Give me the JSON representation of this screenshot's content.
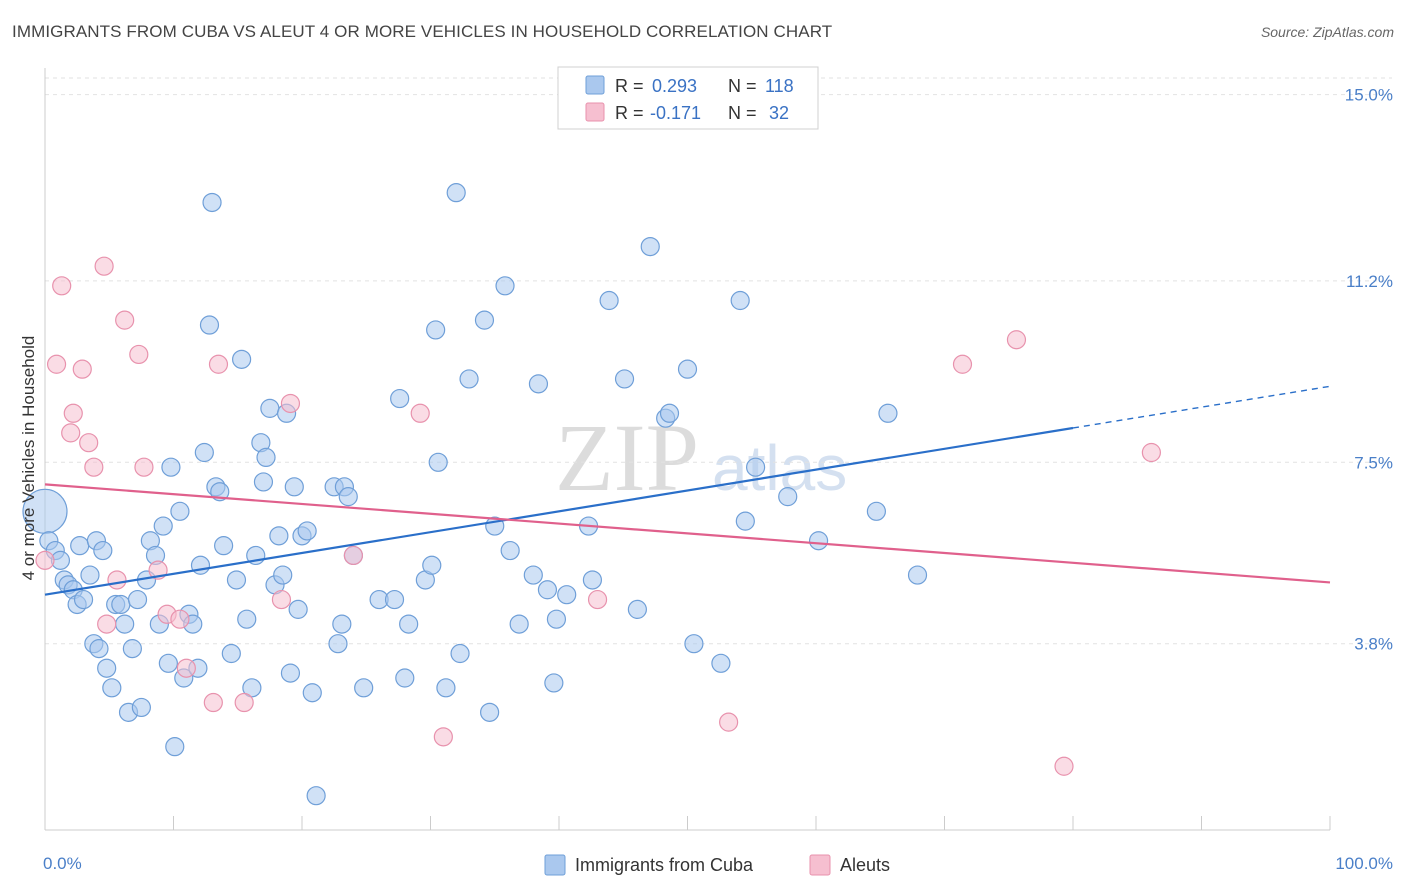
{
  "title": "IMMIGRANTS FROM CUBA VS ALEUT 4 OR MORE VEHICLES IN HOUSEHOLD CORRELATION CHART",
  "source": "Source: ZipAtlas.com",
  "watermark": {
    "zip": "ZIP",
    "atlas": "atlas"
  },
  "legend": {
    "r_label": "R =",
    "n_label": "N =",
    "rows": [
      {
        "r": "0.293",
        "n": "118"
      },
      {
        "r": "-0.171",
        "n": "32"
      }
    ]
  },
  "colors": {
    "blue_fill": "#aac8ee",
    "blue_stroke": "#6f9fd8",
    "blue_line": "#2a6fc9",
    "pink_fill": "#f6bfd0",
    "pink_stroke": "#e892ad",
    "pink_line": "#e0608c"
  },
  "chart_data": {
    "type": "scatter",
    "title": "IMMIGRANTS FROM CUBA VS ALEUT 4 OR MORE VEHICLES IN HOUSEHOLD CORRELATION CHART",
    "xlabel": "",
    "ylabel": "4 or more Vehicles in Household",
    "xlim": [
      0,
      100
    ],
    "ylim": [
      0,
      15.4
    ],
    "x_tick_labels": [
      "0.0%",
      "100.0%"
    ],
    "y_ticks": [
      3.8,
      7.5,
      11.2,
      15.0
    ],
    "y_tick_labels": [
      "3.8%",
      "7.5%",
      "11.2%",
      "15.0%"
    ],
    "grid": true,
    "legend_position": "top-center",
    "series": [
      {
        "name": "Immigrants from Cuba",
        "color": "#aac8ee",
        "trend": {
          "x": [
            0,
            80
          ],
          "y": [
            4.8,
            8.2
          ],
          "dashed_to": [
            100,
            9.05
          ]
        },
        "points": [
          [
            0,
            6.5,
            "big"
          ],
          [
            0.3,
            5.9
          ],
          [
            0.8,
            5.7
          ],
          [
            1.2,
            5.5
          ],
          [
            1.5,
            5.1
          ],
          [
            1.8,
            5.0
          ],
          [
            2.2,
            4.9
          ],
          [
            2.5,
            4.6
          ],
          [
            3.0,
            4.7
          ],
          [
            2.7,
            5.8
          ],
          [
            3.5,
            5.2
          ],
          [
            3.8,
            3.8
          ],
          [
            4.2,
            3.7
          ],
          [
            4.0,
            5.9
          ],
          [
            4.5,
            5.7
          ],
          [
            4.8,
            3.3
          ],
          [
            5.2,
            2.9
          ],
          [
            5.5,
            4.6
          ],
          [
            5.9,
            4.6
          ],
          [
            6.2,
            4.2
          ],
          [
            6.5,
            2.4
          ],
          [
            6.8,
            3.7
          ],
          [
            7.2,
            4.7
          ],
          [
            7.5,
            2.5
          ],
          [
            7.9,
            5.1
          ],
          [
            8.2,
            5.9
          ],
          [
            8.6,
            5.6
          ],
          [
            8.9,
            4.2
          ],
          [
            9.2,
            6.2
          ],
          [
            9.6,
            3.4
          ],
          [
            9.8,
            7.4
          ],
          [
            10.1,
            1.7
          ],
          [
            10.5,
            6.5
          ],
          [
            10.8,
            3.1
          ],
          [
            11.2,
            4.4
          ],
          [
            11.5,
            4.2
          ],
          [
            11.9,
            3.3
          ],
          [
            12.1,
            5.4
          ],
          [
            12.4,
            7.7
          ],
          [
            12.8,
            10.3
          ],
          [
            13.0,
            12.8
          ],
          [
            13.3,
            7.0
          ],
          [
            13.6,
            6.9
          ],
          [
            13.9,
            5.8
          ],
          [
            14.5,
            3.6
          ],
          [
            14.9,
            5.1
          ],
          [
            15.3,
            9.6
          ],
          [
            15.7,
            4.3
          ],
          [
            16.1,
            2.9
          ],
          [
            16.4,
            5.6
          ],
          [
            16.8,
            7.9
          ],
          [
            17.0,
            7.1
          ],
          [
            17.2,
            7.6
          ],
          [
            17.5,
            8.6
          ],
          [
            17.9,
            5.0
          ],
          [
            18.2,
            6.0
          ],
          [
            18.5,
            5.2
          ],
          [
            18.8,
            8.5
          ],
          [
            19.1,
            3.2
          ],
          [
            19.4,
            7.0
          ],
          [
            19.7,
            4.5
          ],
          [
            20.0,
            6.0
          ],
          [
            20.4,
            6.1
          ],
          [
            20.8,
            2.8
          ],
          [
            21.1,
            0.7
          ],
          [
            22.8,
            3.8
          ],
          [
            22.5,
            7.0
          ],
          [
            23.1,
            4.2
          ],
          [
            23.3,
            7.0
          ],
          [
            23.6,
            6.8
          ],
          [
            24.0,
            5.6
          ],
          [
            24.8,
            2.9
          ],
          [
            26.0,
            4.7
          ],
          [
            27.2,
            4.7
          ],
          [
            27.6,
            8.8
          ],
          [
            28.0,
            3.1
          ],
          [
            28.3,
            4.2
          ],
          [
            29.6,
            5.1
          ],
          [
            30.1,
            5.4
          ],
          [
            30.4,
            10.2
          ],
          [
            30.6,
            7.5
          ],
          [
            31.2,
            2.9
          ],
          [
            32.0,
            13.0
          ],
          [
            32.3,
            3.6
          ],
          [
            33.0,
            9.2
          ],
          [
            34.2,
            10.4
          ],
          [
            34.6,
            2.4
          ],
          [
            35.0,
            6.2
          ],
          [
            35.8,
            11.1
          ],
          [
            36.2,
            5.7
          ],
          [
            36.9,
            4.2
          ],
          [
            38.0,
            5.2
          ],
          [
            38.4,
            9.1
          ],
          [
            39.1,
            4.9
          ],
          [
            39.6,
            3.0
          ],
          [
            39.8,
            4.3
          ],
          [
            40.6,
            4.8
          ],
          [
            42.3,
            6.2
          ],
          [
            42.6,
            5.1
          ],
          [
            43.9,
            10.8
          ],
          [
            45.1,
            9.2
          ],
          [
            46.1,
            4.5
          ],
          [
            47.1,
            11.9
          ],
          [
            48.3,
            8.4
          ],
          [
            48.6,
            8.5
          ],
          [
            50.0,
            9.4
          ],
          [
            50.5,
            3.8
          ],
          [
            52.6,
            3.4
          ],
          [
            54.1,
            10.8
          ],
          [
            54.5,
            6.3
          ],
          [
            55.3,
            7.4
          ],
          [
            57.8,
            6.8
          ],
          [
            60.2,
            5.9
          ],
          [
            64.7,
            6.5
          ],
          [
            65.6,
            8.5
          ],
          [
            67.9,
            5.2
          ]
        ]
      },
      {
        "name": "Aleuts",
        "color": "#f6bfd0",
        "trend": {
          "x": [
            0,
            100
          ],
          "y": [
            7.05,
            5.05
          ]
        },
        "points": [
          [
            0,
            5.5
          ],
          [
            0.9,
            9.5
          ],
          [
            1.3,
            11.1
          ],
          [
            2.0,
            8.1
          ],
          [
            2.2,
            8.5
          ],
          [
            2.9,
            9.4
          ],
          [
            3.4,
            7.9
          ],
          [
            3.8,
            7.4
          ],
          [
            4.6,
            11.5
          ],
          [
            4.8,
            4.2
          ],
          [
            5.6,
            5.1
          ],
          [
            6.2,
            10.4
          ],
          [
            7.3,
            9.7
          ],
          [
            7.7,
            7.4
          ],
          [
            8.8,
            5.3
          ],
          [
            9.5,
            4.4
          ],
          [
            10.5,
            4.3
          ],
          [
            11.0,
            3.3
          ],
          [
            13.1,
            2.6
          ],
          [
            13.5,
            9.5
          ],
          [
            15.5,
            2.6
          ],
          [
            18.4,
            4.7
          ],
          [
            19.1,
            8.7
          ],
          [
            24.0,
            5.6
          ],
          [
            29.2,
            8.5
          ],
          [
            31.0,
            1.9
          ],
          [
            43.0,
            4.7
          ],
          [
            53.2,
            2.2
          ],
          [
            71.4,
            9.5
          ],
          [
            75.6,
            10.0
          ],
          [
            79.3,
            1.3
          ],
          [
            86.1,
            7.7
          ]
        ]
      }
    ]
  }
}
